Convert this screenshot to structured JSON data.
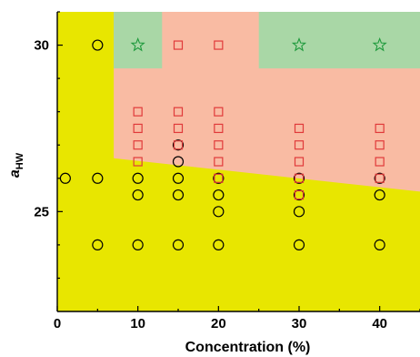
{
  "chart_data": {
    "type": "scatter",
    "title": "",
    "xlabel": "Concentration (%)",
    "ylabel": {
      "main": "a",
      "sub": "HW"
    },
    "xlim": [
      0,
      45
    ],
    "ylim": [
      22,
      31
    ],
    "xticks": [
      0,
      10,
      20,
      30,
      40
    ],
    "yticks": [
      25,
      30
    ],
    "grid": false,
    "regions": [
      {
        "name": "yellow region",
        "color": "#e8e600",
        "polygon": [
          [
            0,
            22
          ],
          [
            0,
            31
          ],
          [
            45,
            31
          ],
          [
            45,
            22
          ]
        ]
      },
      {
        "name": "salmon region",
        "color": "#f9bba3",
        "polygon": [
          [
            7,
            26.6
          ],
          [
            7,
            31
          ],
          [
            45,
            31
          ],
          [
            45,
            25.6
          ]
        ]
      },
      {
        "name": "green region A",
        "color": "#a9d7a6",
        "polygon": [
          [
            7,
            29.3
          ],
          [
            7,
            31
          ],
          [
            13,
            31
          ],
          [
            13,
            29.3
          ]
        ]
      },
      {
        "name": "green region B",
        "color": "#a9d7a6",
        "polygon": [
          [
            25,
            29.3
          ],
          [
            25,
            31
          ],
          [
            45,
            31
          ],
          [
            45,
            29.3
          ]
        ]
      }
    ],
    "series": [
      {
        "marker": "circle",
        "color": "#000000",
        "points": [
          [
            5,
            30
          ],
          [
            1,
            26
          ],
          [
            5,
            26
          ],
          [
            10,
            26
          ],
          [
            15,
            26
          ],
          [
            20,
            26
          ],
          [
            30,
            26
          ],
          [
            40,
            26
          ],
          [
            10,
            25.5
          ],
          [
            15,
            25.5
          ],
          [
            20,
            25.5
          ],
          [
            30,
            25.5
          ],
          [
            40,
            25.5
          ],
          [
            15,
            26.5
          ],
          [
            15,
            27
          ],
          [
            20,
            25
          ],
          [
            30,
            25
          ],
          [
            5,
            24
          ],
          [
            10,
            24
          ],
          [
            15,
            24
          ],
          [
            20,
            24
          ],
          [
            30,
            24
          ],
          [
            40,
            24
          ]
        ]
      },
      {
        "marker": "square",
        "color": "#e03a3a",
        "points": [
          [
            15,
            30
          ],
          [
            20,
            30
          ],
          [
            10,
            28
          ],
          [
            10,
            27.5
          ],
          [
            10,
            27
          ],
          [
            10,
            26.5
          ],
          [
            15,
            28
          ],
          [
            15,
            27.5
          ],
          [
            15,
            27
          ],
          [
            20,
            28
          ],
          [
            20,
            27.5
          ],
          [
            20,
            27
          ],
          [
            20,
            26.5
          ],
          [
            20,
            26
          ],
          [
            30,
            27.5
          ],
          [
            30,
            27
          ],
          [
            30,
            26.5
          ],
          [
            30,
            26
          ],
          [
            30,
            25.5
          ],
          [
            40,
            27.5
          ],
          [
            40,
            27
          ],
          [
            40,
            26.5
          ],
          [
            40,
            26
          ]
        ]
      },
      {
        "marker": "star",
        "color": "#1e9a3c",
        "points": [
          [
            10,
            30
          ],
          [
            30,
            30
          ],
          [
            40,
            30
          ]
        ]
      }
    ]
  }
}
